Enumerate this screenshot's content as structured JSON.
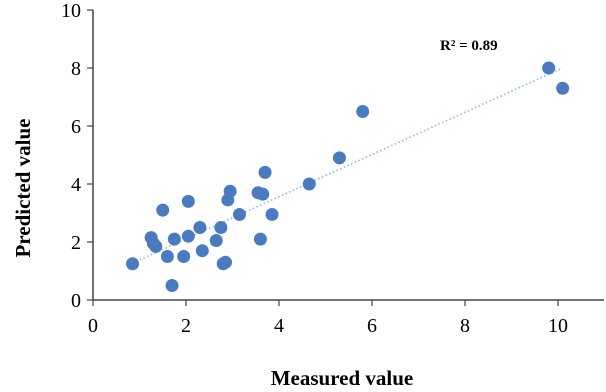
{
  "chart_data": {
    "type": "scatter",
    "title": "",
    "xlabel": "Measured value",
    "ylabel": "Predicted value",
    "xlim": [
      0,
      10
    ],
    "ylim": [
      0,
      10
    ],
    "x_ticks": [
      "0",
      "2",
      "4",
      "6",
      "8",
      "10"
    ],
    "y_ticks": [
      "0",
      "2",
      "4",
      "6",
      "8",
      "10"
    ],
    "annotation": "R² = 0.89",
    "grid": false,
    "legend": "none",
    "marker_color": "#4a7bc1",
    "trendline": {
      "style": "dotted",
      "color": "#8eb4e0",
      "from": [
        0.85,
        1.27
      ],
      "to": [
        10.1,
        8.0
      ]
    },
    "points": [
      {
        "x": 0.85,
        "y": 1.25
      },
      {
        "x": 1.25,
        "y": 2.15
      },
      {
        "x": 1.3,
        "y": 1.95
      },
      {
        "x": 1.35,
        "y": 1.85
      },
      {
        "x": 1.5,
        "y": 3.1
      },
      {
        "x": 1.6,
        "y": 1.5
      },
      {
        "x": 1.7,
        "y": 0.5
      },
      {
        "x": 1.75,
        "y": 2.1
      },
      {
        "x": 1.95,
        "y": 1.5
      },
      {
        "x": 2.05,
        "y": 2.2
      },
      {
        "x": 2.05,
        "y": 3.4
      },
      {
        "x": 2.3,
        "y": 2.5
      },
      {
        "x": 2.35,
        "y": 1.7
      },
      {
        "x": 2.65,
        "y": 2.05
      },
      {
        "x": 2.75,
        "y": 2.5
      },
      {
        "x": 2.8,
        "y": 1.25
      },
      {
        "x": 2.85,
        "y": 1.3
      },
      {
        "x": 2.9,
        "y": 3.45
      },
      {
        "x": 2.95,
        "y": 3.75
      },
      {
        "x": 3.15,
        "y": 2.95
      },
      {
        "x": 3.55,
        "y": 3.7
      },
      {
        "x": 3.6,
        "y": 2.1
      },
      {
        "x": 3.65,
        "y": 3.65
      },
      {
        "x": 3.7,
        "y": 4.4
      },
      {
        "x": 3.85,
        "y": 2.95
      },
      {
        "x": 4.65,
        "y": 4.0
      },
      {
        "x": 5.3,
        "y": 4.9
      },
      {
        "x": 5.8,
        "y": 6.5
      },
      {
        "x": 9.8,
        "y": 8.0
      },
      {
        "x": 10.1,
        "y": 7.3
      }
    ]
  }
}
